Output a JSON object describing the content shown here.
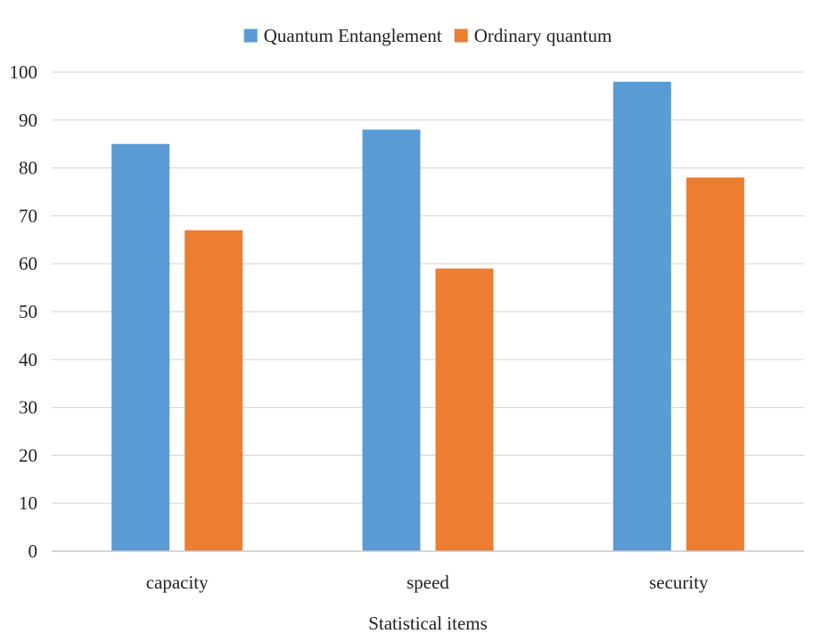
{
  "chart_data": {
    "type": "bar",
    "categories": [
      "capacity",
      "speed",
      "security"
    ],
    "series": [
      {
        "name": "Quantum Entanglement",
        "color": "#5B9BD5",
        "values": [
          85,
          88,
          98
        ]
      },
      {
        "name": "Ordinary quantum",
        "color": "#ED7D31",
        "values": [
          67,
          59,
          78
        ]
      }
    ],
    "xlabel": "Statistical items",
    "ylabel": "",
    "ylim": [
      0,
      100
    ],
    "yticks": [
      0,
      10,
      20,
      30,
      40,
      50,
      60,
      70,
      80,
      90,
      100
    ],
    "grid": true,
    "legend_position": "top-center"
  }
}
